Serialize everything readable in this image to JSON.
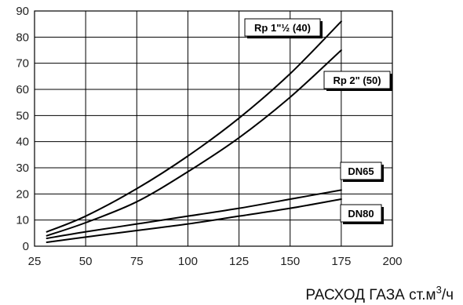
{
  "chart_data": {
    "type": "line",
    "title": "",
    "xlabel": "РАСХОД  ГАЗА ст.м³/ч",
    "xlabel_prefix": "РАСХОД  ГАЗА ст.м",
    "xlabel_superscript": "3",
    "xlabel_suffix": "/ч",
    "ylabel": "",
    "xlim": [
      25,
      200
    ],
    "ylim": [
      0,
      90
    ],
    "x_ticks": [
      25,
      50,
      75,
      100,
      125,
      150,
      175,
      200
    ],
    "y_ticks": [
      0,
      10,
      20,
      30,
      40,
      50,
      60,
      70,
      80,
      90
    ],
    "grid": true,
    "colors": {
      "line": "#000000",
      "grid": "#000000",
      "background": "#ffffff",
      "label_box": "#ffffff"
    },
    "series": [
      {
        "name": "Rp 1\"½ (40)",
        "x": [
          31,
          50,
          75,
          100,
          125,
          150,
          175
        ],
        "y": [
          5.5,
          11.5,
          22,
          34.5,
          49,
          66,
          86
        ]
      },
      {
        "name": "Rp 2\" (50)",
        "x": [
          31,
          50,
          75,
          100,
          125,
          150,
          175
        ],
        "y": [
          4,
          9,
          17,
          28.5,
          41.5,
          57,
          75
        ]
      },
      {
        "name": "DN65",
        "x": [
          31,
          50,
          75,
          100,
          125,
          150,
          175
        ],
        "y": [
          3,
          5.5,
          8.5,
          11.5,
          14.5,
          18,
          21.5
        ]
      },
      {
        "name": "DN80",
        "x": [
          31,
          50,
          75,
          100,
          125,
          150,
          175
        ],
        "y": [
          1.5,
          3.5,
          6,
          8.5,
          11.5,
          14.5,
          18
        ]
      }
    ]
  }
}
